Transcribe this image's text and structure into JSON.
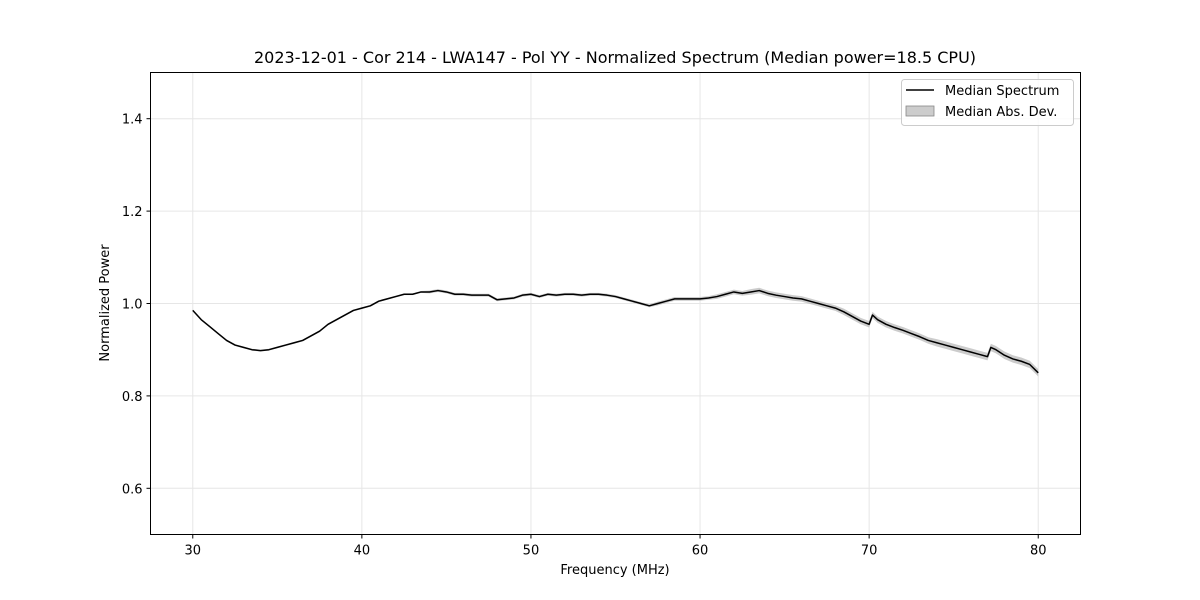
{
  "chart_data": {
    "type": "line",
    "title": "2023-12-01 - Cor 214 - LWA147 - Pol YY - Normalized Spectrum (Median power=18.5 CPU)",
    "xlabel": "Frequency (MHz)",
    "ylabel": "Normalized Power",
    "xlim": [
      27.5,
      82.5
    ],
    "ylim": [
      0.5,
      1.5
    ],
    "xticks": [
      30,
      40,
      50,
      60,
      70,
      80
    ],
    "yticks": [
      0.6,
      0.8,
      1.0,
      1.2,
      1.4
    ],
    "xtick_labels": [
      "30",
      "40",
      "50",
      "60",
      "70",
      "80"
    ],
    "ytick_labels": [
      "0.6",
      "0.8",
      "1.0",
      "1.2",
      "1.4"
    ],
    "grid": true,
    "legend_position": "top-right",
    "legend": [
      "Median Spectrum",
      "Median Abs. Dev."
    ],
    "colors": {
      "line": "#000000",
      "band": "#aaaaaa",
      "grid": "#e6e6e6"
    },
    "series": [
      {
        "name": "Median Spectrum",
        "x": [
          30,
          30.5,
          31,
          31.5,
          32,
          32.5,
          33,
          33.5,
          34,
          34.5,
          35,
          35.5,
          36,
          36.5,
          37,
          37.5,
          38,
          38.5,
          39,
          39.5,
          40,
          40.5,
          41,
          41.5,
          42,
          42.5,
          43,
          43.5,
          44,
          44.5,
          45,
          45.5,
          46,
          46.5,
          47,
          47.5,
          48,
          48.5,
          49,
          49.5,
          50,
          50.5,
          51,
          51.5,
          52,
          52.5,
          53,
          53.5,
          54,
          54.5,
          55,
          55.5,
          56,
          56.5,
          57,
          57.5,
          58,
          58.5,
          59,
          59.5,
          60,
          60.5,
          61,
          61.5,
          62,
          62.5,
          63,
          63.5,
          64,
          64.5,
          65,
          65.5,
          66,
          66.5,
          67,
          67.5,
          68,
          68.5,
          69,
          69.5,
          70,
          70.2,
          70.5,
          71,
          71.5,
          72,
          72.5,
          73,
          73.5,
          74,
          74.5,
          75,
          75.5,
          76,
          76.5,
          77,
          77.2,
          77.5,
          78,
          78.5,
          79,
          79.5,
          80
        ],
        "values": [
          0.985,
          0.965,
          0.95,
          0.935,
          0.92,
          0.91,
          0.905,
          0.9,
          0.898,
          0.9,
          0.905,
          0.91,
          0.915,
          0.92,
          0.93,
          0.94,
          0.955,
          0.965,
          0.975,
          0.985,
          0.99,
          0.995,
          1.005,
          1.01,
          1.015,
          1.02,
          1.02,
          1.025,
          1.025,
          1.028,
          1.025,
          1.02,
          1.02,
          1.018,
          1.018,
          1.018,
          1.008,
          1.01,
          1.012,
          1.018,
          1.02,
          1.015,
          1.02,
          1.018,
          1.02,
          1.02,
          1.018,
          1.02,
          1.02,
          1.018,
          1.015,
          1.01,
          1.005,
          1.0,
          0.995,
          1.0,
          1.005,
          1.01,
          1.01,
          1.01,
          1.01,
          1.012,
          1.015,
          1.02,
          1.025,
          1.022,
          1.025,
          1.028,
          1.022,
          1.018,
          1.015,
          1.012,
          1.01,
          1.005,
          1.0,
          0.995,
          0.99,
          0.982,
          0.972,
          0.962,
          0.955,
          0.975,
          0.965,
          0.955,
          0.948,
          0.942,
          0.935,
          0.928,
          0.92,
          0.915,
          0.91,
          0.905,
          0.9,
          0.895,
          0.89,
          0.885,
          0.905,
          0.9,
          0.888,
          0.88,
          0.875,
          0.868,
          0.85
        ],
        "mad": [
          0.002,
          0.002,
          0.002,
          0.002,
          0.002,
          0.002,
          0.002,
          0.002,
          0.002,
          0.002,
          0.002,
          0.002,
          0.002,
          0.002,
          0.002,
          0.002,
          0.002,
          0.002,
          0.002,
          0.002,
          0.002,
          0.002,
          0.002,
          0.002,
          0.002,
          0.002,
          0.002,
          0.002,
          0.003,
          0.003,
          0.003,
          0.003,
          0.003,
          0.003,
          0.003,
          0.003,
          0.003,
          0.003,
          0.003,
          0.003,
          0.003,
          0.003,
          0.003,
          0.003,
          0.003,
          0.003,
          0.003,
          0.003,
          0.003,
          0.003,
          0.003,
          0.003,
          0.003,
          0.003,
          0.003,
          0.004,
          0.004,
          0.004,
          0.004,
          0.004,
          0.004,
          0.004,
          0.005,
          0.005,
          0.005,
          0.005,
          0.006,
          0.006,
          0.006,
          0.006,
          0.006,
          0.006,
          0.006,
          0.006,
          0.006,
          0.006,
          0.006,
          0.007,
          0.007,
          0.007,
          0.007,
          0.007,
          0.007,
          0.007,
          0.007,
          0.007,
          0.007,
          0.007,
          0.007,
          0.008,
          0.008,
          0.008,
          0.008,
          0.008,
          0.008,
          0.008,
          0.008,
          0.008,
          0.008,
          0.008,
          0.008,
          0.008,
          0.008
        ]
      }
    ]
  }
}
